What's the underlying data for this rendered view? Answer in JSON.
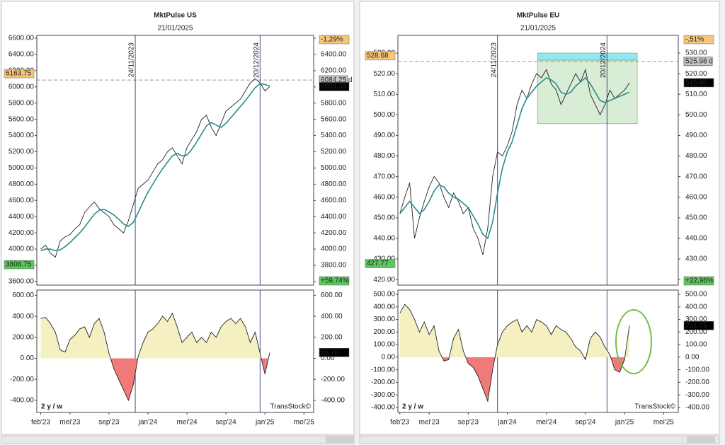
{
  "chart_data": [
    {
      "type": "line",
      "title": "MktPulse US",
      "subtitle": "21/01/2025",
      "x": [
        0,
        0.5,
        1,
        1.5,
        2,
        2.5,
        3,
        3.5,
        4,
        4.5,
        5,
        5.5,
        6,
        6.5,
        7,
        7.5,
        8,
        8.5,
        9,
        9.5,
        10,
        10.5,
        11,
        11.5,
        12,
        12.5,
        13,
        13.5,
        14,
        14.5,
        15,
        15.5,
        16,
        16.5,
        17,
        17.5,
        18,
        18.5,
        19,
        19.5,
        20,
        20.5,
        21,
        21.5,
        22,
        22.5,
        23,
        23.5
      ],
      "series": [
        {
          "color": "#222222",
          "values": [
            4000,
            4050,
            3950,
            3900,
            4100,
            4150,
            4180,
            4250,
            4300,
            4450,
            4520,
            4580,
            4500,
            4450,
            4400,
            4300,
            4250,
            4200,
            4350,
            4550,
            4750,
            4800,
            4850,
            4950,
            5050,
            5100,
            5200,
            5250,
            5150,
            5050,
            5250,
            5350,
            5450,
            5600,
            5650,
            5500,
            5400,
            5550,
            5700,
            5750,
            5800,
            5850,
            5950,
            6050,
            6100,
            6050,
            5950,
            6003.36
          ]
        },
        {
          "color": "#2a8c8c",
          "values": [
            3980,
            4000,
            4000,
            3980,
            3990,
            4030,
            4080,
            4140,
            4200,
            4270,
            4350,
            4430,
            4480,
            4490,
            4460,
            4420,
            4370,
            4310,
            4280,
            4330,
            4450,
            4580,
            4700,
            4800,
            4900,
            4990,
            5070,
            5150,
            5180,
            5150,
            5160,
            5230,
            5320,
            5420,
            5520,
            5560,
            5530,
            5500,
            5550,
            5620,
            5690,
            5760,
            5830,
            5910,
            5990,
            6040,
            6030,
            6010
          ]
        }
      ],
      "xlim": [
        -0.4,
        28
      ],
      "ylim": [
        3556,
        6635
      ],
      "yticks": [
        {
          "value": 3600,
          "label": "3600.00"
        },
        {
          "value": 3800,
          "label": "3800.00"
        },
        {
          "value": 4000,
          "label": "4000.00"
        },
        {
          "value": 4200,
          "label": "4200.00"
        },
        {
          "value": 4400,
          "label": "4400.00"
        },
        {
          "value": 4600,
          "label": "4600.00"
        },
        {
          "value": 4800,
          "label": "4800.00"
        },
        {
          "value": 5000,
          "label": "5000.00"
        },
        {
          "value": 5200,
          "label": "5200.00"
        },
        {
          "value": 5400,
          "label": "5400.00"
        },
        {
          "value": 5600,
          "label": "5600.00"
        },
        {
          "value": 5800,
          "label": "5800.00"
        },
        {
          "value": 6000,
          "label": "6000.00"
        },
        {
          "value": 6200,
          "label": "6200.00"
        },
        {
          "value": 6400,
          "label": "6400.00"
        },
        {
          "value": 6600,
          "label": "6600.00"
        }
      ],
      "markers": [
        {
          "x": 9.7,
          "label": "24/11/2023"
        },
        {
          "x": 22.5,
          "label": "20/12/2024"
        }
      ],
      "hline": {
        "value": 6084.25,
        "label": "6084.25 d"
      },
      "tags": [
        {
          "value": 6163.75,
          "side": "left",
          "color": "#f7c67a"
        },
        {
          "value": 3808.75,
          "side": "left",
          "color": "#5ec65e"
        },
        {
          "label": "-1,29%",
          "side": "right",
          "pos": "top",
          "color": "#f7c67a"
        },
        {
          "value": 6003.36,
          "side": "right",
          "color": "#000000"
        },
        {
          "label": "+59,74%",
          "side": "right",
          "pos": "bottom",
          "color": "#5ec65e"
        }
      ]
    },
    {
      "type": "area",
      "x": [
        0,
        0.5,
        1,
        1.5,
        2,
        2.5,
        3,
        3.5,
        4,
        4.5,
        5,
        5.5,
        6,
        6.5,
        7,
        7.5,
        8,
        8.5,
        9,
        9.5,
        10,
        10.5,
        11,
        11.5,
        12,
        12.5,
        13,
        13.5,
        14,
        14.5,
        15,
        15.5,
        16,
        16.5,
        17,
        17.5,
        18,
        18.5,
        19,
        19.5,
        20,
        20.5,
        21,
        21.5,
        22,
        22.5,
        23,
        23.5
      ],
      "values": [
        380,
        390,
        330,
        250,
        80,
        60,
        180,
        220,
        280,
        300,
        200,
        330,
        380,
        250,
        50,
        -100,
        -200,
        -300,
        -400,
        -250,
        20,
        150,
        250,
        280,
        330,
        400,
        350,
        430,
        300,
        150,
        200,
        250,
        150,
        200,
        150,
        250,
        200,
        300,
        350,
        380,
        330,
        380,
        300,
        150,
        250,
        50,
        -150,
        55.7
      ],
      "colors": {
        "positive": "#f5f0c2",
        "negative": "#f07a7a",
        "line": "#222222"
      },
      "xlim": [
        -0.4,
        28
      ],
      "ylim": [
        -515,
        650
      ],
      "yticks": [
        {
          "value": -400,
          "label": "-400.00"
        },
        {
          "value": -200,
          "label": "-200.00"
        },
        {
          "value": 0,
          "label": "0.00"
        },
        {
          "value": 200,
          "label": "200.00"
        },
        {
          "value": 400,
          "label": "400.00"
        },
        {
          "value": 600,
          "label": "600.00"
        }
      ],
      "xticks": [
        {
          "value": 0,
          "label": "feb'23"
        },
        {
          "value": 3,
          "label": "mei'23"
        },
        {
          "value": 7,
          "label": "sep'23"
        },
        {
          "value": 11,
          "label": "jan'24"
        },
        {
          "value": 15,
          "label": "mei'24"
        },
        {
          "value": 19,
          "label": "sep'24"
        },
        {
          "value": 23,
          "label": "jan'25"
        },
        {
          "value": 27,
          "label": "mei'25"
        }
      ],
      "markers": [
        {
          "x": 9.7
        },
        {
          "x": 22.5
        }
      ],
      "tags": [
        {
          "value": 55.7,
          "label": "55.70",
          "side": "right",
          "color": "#000000"
        }
      ],
      "corner_text": "2 y / w",
      "credit": "TransStock©"
    },
    {
      "type": "line",
      "title": "MktPulse EU",
      "subtitle": "21/01/2025",
      "x": [
        0,
        0.5,
        1,
        1.5,
        2,
        2.5,
        3,
        3.5,
        4,
        4.5,
        5,
        5.5,
        6,
        6.5,
        7,
        7.5,
        8,
        8.5,
        9,
        9.5,
        10,
        10.5,
        11,
        11.5,
        12,
        12.5,
        13,
        13.5,
        14,
        14.5,
        15,
        15.5,
        16,
        16.5,
        17,
        17.5,
        18,
        18.5,
        19,
        19.5,
        20,
        20.5,
        21,
        21.5,
        22,
        22.5,
        23,
        23.5
      ],
      "series": [
        {
          "color": "#222222",
          "values": [
            452,
            460,
            467,
            440,
            450,
            458,
            465,
            470,
            467,
            460,
            455,
            462,
            458,
            452,
            455,
            445,
            440,
            432,
            445,
            470,
            482,
            480,
            485,
            492,
            505,
            512,
            508,
            515,
            520,
            518,
            522,
            515,
            512,
            505,
            510,
            515,
            520,
            516,
            522,
            510,
            505,
            500,
            505,
            512,
            508,
            510,
            512,
            515.6
          ]
        },
        {
          "color": "#2a8c8c",
          "values": [
            452,
            455,
            458,
            455,
            452,
            454,
            458,
            463,
            466,
            465,
            462,
            460,
            459,
            457,
            455,
            451,
            447,
            442,
            440,
            448,
            462,
            474,
            482,
            487,
            495,
            503,
            508,
            511,
            514,
            516,
            518,
            517,
            515,
            511,
            510,
            511,
            514,
            516,
            518,
            515,
            511,
            507,
            506,
            507,
            508,
            509,
            510,
            511
          ]
        }
      ],
      "xlim": [
        -0.2,
        28.5
      ],
      "ylim": [
        417.3,
        538.6
      ],
      "yticks": [
        {
          "value": 420,
          "label": "420.00"
        },
        {
          "value": 430,
          "label": "430.00"
        },
        {
          "value": 440,
          "label": "440.00"
        },
        {
          "value": 450,
          "label": "450.00"
        },
        {
          "value": 460,
          "label": "460.00"
        },
        {
          "value": 470,
          "label": "470.00"
        },
        {
          "value": 480,
          "label": "480.00"
        },
        {
          "value": 490,
          "label": "490.00"
        },
        {
          "value": 500,
          "label": "500.00"
        },
        {
          "value": 510,
          "label": "510.00"
        },
        {
          "value": 520,
          "label": "520.00"
        },
        {
          "value": 530,
          "label": "530.00"
        }
      ],
      "boxes": [
        {
          "x": [
            14.1,
            24.3
          ],
          "y": [
            495.7,
            526.6
          ],
          "color": "#d9ecd5"
        },
        {
          "x": [
            14.1,
            24.3
          ],
          "y": [
            526.6,
            530
          ],
          "color": "#8fe8f5"
        }
      ],
      "markers": [
        {
          "x": 10,
          "label": "24/11/2023"
        },
        {
          "x": 21.2,
          "label": "20/12/2024"
        }
      ],
      "hline": {
        "value": 525.98,
        "label": "525.98 d"
      },
      "tags": [
        {
          "value": 528.68,
          "side": "left",
          "color": "#f7c67a"
        },
        {
          "value": 427.77,
          "side": "left",
          "color": "#5ec65e"
        },
        {
          "label": "-,51%",
          "side": "right",
          "pos": "top",
          "color": "#f7c67a"
        },
        {
          "value": 515.6,
          "label": "515.60",
          "side": "right",
          "color": "#000000"
        },
        {
          "label": "+22,96%",
          "side": "right",
          "pos": "bottom",
          "color": "#5ec65e"
        }
      ]
    },
    {
      "type": "area",
      "x": [
        0,
        0.5,
        1,
        1.5,
        2,
        2.5,
        3,
        3.5,
        4,
        4.5,
        5,
        5.5,
        6,
        6.5,
        7,
        7.5,
        8,
        8.5,
        9,
        9.5,
        10,
        10.5,
        11,
        11.5,
        12,
        12.5,
        13,
        13.5,
        14,
        14.5,
        15,
        15.5,
        16,
        16.5,
        17,
        17.5,
        18,
        18.5,
        19,
        19.5,
        20,
        20.5,
        21,
        21.5,
        22,
        22.5,
        23,
        23.5
      ],
      "values": [
        350,
        420,
        380,
        300,
        200,
        280,
        180,
        250,
        50,
        -30,
        -20,
        150,
        220,
        50,
        -50,
        -80,
        -150,
        -250,
        -350,
        -100,
        100,
        200,
        250,
        280,
        300,
        200,
        250,
        200,
        300,
        280,
        250,
        180,
        250,
        220,
        200,
        150,
        80,
        50,
        -20,
        150,
        200,
        160,
        80,
        20,
        -100,
        -120,
        -20,
        251.09
      ],
      "colors": {
        "positive": "#f5f0c2",
        "negative": "#f07a7a",
        "line": "#222222"
      },
      "xlim": [
        -0.2,
        28.5
      ],
      "ylim": [
        -440,
        534
      ],
      "yticks": [
        {
          "value": -400,
          "label": "-400.00"
        },
        {
          "value": -300,
          "label": "-300.00"
        },
        {
          "value": -200,
          "label": "-200.00"
        },
        {
          "value": -100,
          "label": "-100.00"
        },
        {
          "value": 0,
          "label": "0.00"
        },
        {
          "value": 100,
          "label": "100.00"
        },
        {
          "value": 200,
          "label": "200.00"
        },
        {
          "value": 300,
          "label": "300.00"
        },
        {
          "value": 400,
          "label": "400.00"
        },
        {
          "value": 500,
          "label": "500.00"
        }
      ],
      "xticks": [
        {
          "value": 0,
          "label": "feb'23"
        },
        {
          "value": 3,
          "label": "mei'23"
        },
        {
          "value": 7,
          "label": "sep'23"
        },
        {
          "value": 11,
          "label": "jan'24"
        },
        {
          "value": 15,
          "label": "mei'24"
        },
        {
          "value": 19,
          "label": "sep'24"
        },
        {
          "value": 23,
          "label": "jan'25"
        },
        {
          "value": 27,
          "label": "mei'25"
        }
      ],
      "markers": [
        {
          "x": 10
        },
        {
          "x": 21.2
        }
      ],
      "tags": [
        {
          "value": 251.09,
          "side": "right",
          "color": "#000000"
        }
      ],
      "corner_text": "2 y / w",
      "credit": "TransStock©"
    }
  ]
}
